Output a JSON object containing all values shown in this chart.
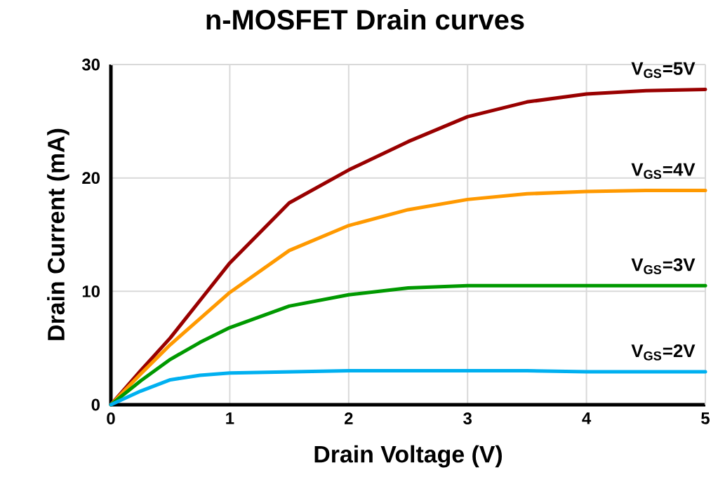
{
  "chart_data": {
    "type": "line",
    "title": "n-MOSFET Drain curves",
    "xlabel": "Drain Voltage (V)",
    "ylabel": "Drain Current (mA)",
    "xlim": [
      0,
      5
    ],
    "ylim": [
      0,
      30
    ],
    "xticks": [
      0,
      1,
      2,
      3,
      4,
      5
    ],
    "yticks": [
      0,
      10,
      20,
      30
    ],
    "grid": true,
    "marker": "none",
    "line_style": "solid",
    "x": [
      0,
      0.25,
      0.5,
      0.75,
      1,
      1.5,
      2,
      2.5,
      3,
      3.5,
      4,
      4.5,
      5
    ],
    "series": [
      {
        "name": "V$_{GS}$=5V",
        "color": "#990000",
        "values": [
          0,
          3.0,
          5.9,
          9.2,
          12.5,
          17.8,
          20.7,
          23.2,
          25.4,
          26.7,
          27.4,
          27.7,
          27.8
        ]
      },
      {
        "name": "V$_{GS}$=4V",
        "color": "#ff9900",
        "values": [
          0,
          2.7,
          5.3,
          7.6,
          9.9,
          13.6,
          15.8,
          17.2,
          18.1,
          18.6,
          18.8,
          18.9,
          18.9
        ]
      },
      {
        "name": "V$_{GS}$=3V",
        "color": "#009900",
        "values": [
          0,
          2.1,
          4.0,
          5.5,
          6.8,
          8.7,
          9.7,
          10.3,
          10.5,
          10.5,
          10.5,
          10.5,
          10.5
        ]
      },
      {
        "name": "V$_{GS}$=2V",
        "color": "#00b0f0",
        "values": [
          0,
          1.2,
          2.2,
          2.6,
          2.8,
          2.9,
          3.0,
          3.0,
          3.0,
          3.0,
          2.9,
          2.9,
          2.9
        ]
      }
    ]
  }
}
